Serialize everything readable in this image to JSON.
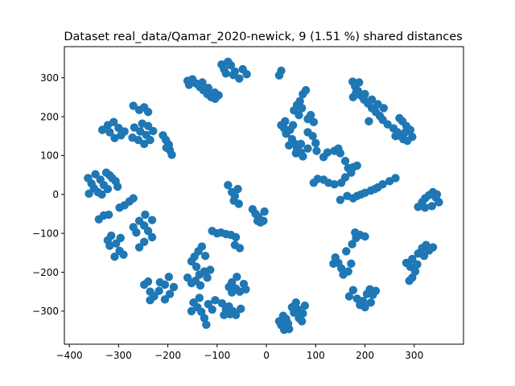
{
  "chart_data": {
    "type": "scatter",
    "title": "Dataset real_data/Qamar_2020-newick, 9 (1.51 %) shared distances",
    "xlabel": "",
    "ylabel": "",
    "xlim": [
      -410,
      400
    ],
    "ylim": [
      -385,
      380
    ],
    "xticks": [
      -400,
      -300,
      -200,
      -100,
      0,
      100,
      200,
      300
    ],
    "xtick_labels": [
      "−400",
      "−300",
      "−200",
      "−100",
      "0",
      "100",
      "200",
      "300"
    ],
    "yticks": [
      -300,
      -200,
      -100,
      0,
      100,
      200,
      300
    ],
    "ytick_labels": [
      "−300",
      "−200",
      "−100",
      "0",
      "100",
      "200",
      "300"
    ],
    "grid": false,
    "marker_color": "#1f77b4",
    "series": [
      {
        "values": [
          [
            -91,
            334
          ],
          [
            -86,
            322
          ],
          [
            -78,
            341
          ],
          [
            -72,
            332
          ],
          [
            -64,
            316
          ],
          [
            -55,
            298
          ],
          [
            -48,
            322
          ],
          [
            -40,
            309
          ],
          [
            -67,
            307
          ],
          [
            -82,
            311
          ],
          [
            -150,
            296
          ],
          [
            -142,
            285
          ],
          [
            -135,
            276
          ],
          [
            -128,
            268
          ],
          [
            -120,
            258
          ],
          [
            -112,
            250
          ],
          [
            -104,
            246
          ],
          [
            -118,
            274
          ],
          [
            -105,
            262
          ],
          [
            -97,
            255
          ],
          [
            -157,
            282
          ],
          [
            -160,
            292
          ],
          [
            -130,
            288
          ],
          [
            -270,
            228
          ],
          [
            -258,
            217
          ],
          [
            -248,
            224
          ],
          [
            -240,
            212
          ],
          [
            -322,
            178
          ],
          [
            -310,
            186
          ],
          [
            -300,
            171
          ],
          [
            -288,
            162
          ],
          [
            -295,
            152
          ],
          [
            -318,
            160
          ],
          [
            -333,
            166
          ],
          [
            -308,
            145
          ],
          [
            -268,
            172
          ],
          [
            -256,
            162
          ],
          [
            -244,
            153
          ],
          [
            -236,
            140
          ],
          [
            -248,
            130
          ],
          [
            -260,
            140
          ],
          [
            -272,
            146
          ],
          [
            -230,
            163
          ],
          [
            -240,
            176
          ],
          [
            -252,
            182
          ],
          [
            -210,
            152
          ],
          [
            -204,
            140
          ],
          [
            -198,
            128
          ],
          [
            -196,
            114
          ],
          [
            -192,
            102
          ],
          [
            -203,
            120
          ],
          [
            -362,
            42
          ],
          [
            -355,
            28
          ],
          [
            -350,
            16
          ],
          [
            -342,
            6
          ],
          [
            -360,
            2
          ],
          [
            -347,
            52
          ],
          [
            -337,
            38
          ],
          [
            -330,
            24
          ],
          [
            -322,
            14
          ],
          [
            -313,
            42
          ],
          [
            -306,
            34
          ],
          [
            -302,
            20
          ],
          [
            -318,
            49
          ],
          [
            -334,
            0
          ],
          [
            -325,
            56
          ],
          [
            -340,
            -64
          ],
          [
            -330,
            -54
          ],
          [
            -320,
            -52
          ],
          [
            -298,
            -34
          ],
          [
            -288,
            -28
          ],
          [
            -278,
            -18
          ],
          [
            -270,
            -10
          ],
          [
            -322,
            -118
          ],
          [
            -315,
            -106
          ],
          [
            -305,
            -126
          ],
          [
            -298,
            -145
          ],
          [
            -290,
            -155
          ],
          [
            -308,
            -160
          ],
          [
            -318,
            -132
          ],
          [
            -296,
            -112
          ],
          [
            -258,
            -68
          ],
          [
            -248,
            -80
          ],
          [
            -240,
            -94
          ],
          [
            -232,
            -110
          ],
          [
            -248,
            -122
          ],
          [
            -258,
            -136
          ],
          [
            -264,
            -98
          ],
          [
            -246,
            -52
          ],
          [
            -232,
            -66
          ],
          [
            -270,
            -84
          ],
          [
            -248,
            -232
          ],
          [
            -240,
            -224
          ],
          [
            -236,
            -250
          ],
          [
            -228,
            -262
          ],
          [
            -218,
            -248
          ],
          [
            -206,
            -270
          ],
          [
            -196,
            -256
          ],
          [
            -188,
            -238
          ],
          [
            -206,
            -232
          ],
          [
            -198,
            -212
          ],
          [
            -216,
            -226
          ],
          [
            -236,
            -272
          ],
          [
            -152,
            -172
          ],
          [
            -146,
            -160
          ],
          [
            -138,
            -146
          ],
          [
            -131,
            -134
          ],
          [
            -142,
            -186
          ],
          [
            -124,
            -158
          ],
          [
            -160,
            -214
          ],
          [
            -152,
            -228
          ],
          [
            -144,
            -222
          ],
          [
            -136,
            -206
          ],
          [
            -126,
            -198
          ],
          [
            -114,
            -194
          ],
          [
            -120,
            -214
          ],
          [
            -134,
            -234
          ],
          [
            -148,
            -278
          ],
          [
            -140,
            -290
          ],
          [
            -132,
            -302
          ],
          [
            -126,
            -318
          ],
          [
            -118,
            -282
          ],
          [
            -110,
            -296
          ],
          [
            -104,
            -272
          ],
          [
            -136,
            -266
          ],
          [
            -152,
            -300
          ],
          [
            -122,
            -335
          ],
          [
            -90,
            -280
          ],
          [
            -82,
            -296
          ],
          [
            -76,
            -288
          ],
          [
            -68,
            -300
          ],
          [
            -62,
            -310
          ],
          [
            -52,
            -294
          ],
          [
            -74,
            -308
          ],
          [
            -86,
            -310
          ],
          [
            -76,
            -238
          ],
          [
            -70,
            -226
          ],
          [
            -62,
            -242
          ],
          [
            -54,
            -250
          ],
          [
            -46,
            -230
          ],
          [
            -60,
            -212
          ],
          [
            -70,
            -252
          ],
          [
            -42,
            -244
          ],
          [
            -110,
            -94
          ],
          [
            -100,
            -100
          ],
          [
            -92,
            -98
          ],
          [
            -82,
            -102
          ],
          [
            -72,
            -104
          ],
          [
            -62,
            -110
          ],
          [
            -64,
            -130
          ],
          [
            -54,
            -138
          ],
          [
            -78,
            24
          ],
          [
            -70,
            6
          ],
          [
            -64,
            -4
          ],
          [
            -58,
            14
          ],
          [
            -56,
            -24
          ],
          [
            -66,
            -16
          ],
          [
            -28,
            -38
          ],
          [
            -22,
            -50
          ],
          [
            -16,
            -58
          ],
          [
            -12,
            -72
          ],
          [
            -6,
            -68
          ],
          [
            -4,
            -44
          ],
          [
            -18,
            -68
          ],
          [
            34,
            -312
          ],
          [
            40,
            -320
          ],
          [
            44,
            -332
          ],
          [
            30,
            -336
          ],
          [
            46,
            -346
          ],
          [
            36,
            -348
          ],
          [
            26,
            -326
          ],
          [
            52,
            -290
          ],
          [
            60,
            -278
          ],
          [
            64,
            -296
          ],
          [
            66,
            -318
          ],
          [
            74,
            -306
          ],
          [
            78,
            -286
          ],
          [
            56,
            -304
          ],
          [
            72,
            -326
          ],
          [
            26,
            306
          ],
          [
            30,
            318
          ],
          [
            52,
            142
          ],
          [
            58,
            130
          ],
          [
            62,
            118
          ],
          [
            70,
            108
          ],
          [
            74,
            98
          ],
          [
            60,
            106
          ],
          [
            46,
            126
          ],
          [
            40,
            156
          ],
          [
            36,
            170
          ],
          [
            30,
            178
          ],
          [
            38,
            188
          ],
          [
            48,
            166
          ],
          [
            54,
            178
          ],
          [
            56,
            216
          ],
          [
            62,
            230
          ],
          [
            68,
            240
          ],
          [
            74,
            258
          ],
          [
            80,
            268
          ],
          [
            72,
            222
          ],
          [
            66,
            204
          ],
          [
            84,
            194
          ],
          [
            90,
            204
          ],
          [
            96,
            186
          ],
          [
            84,
            160
          ],
          [
            94,
            150
          ],
          [
            100,
            132
          ],
          [
            84,
            118
          ],
          [
            102,
            112
          ],
          [
            116,
            96
          ],
          [
            124,
            108
          ],
          [
            70,
            130
          ],
          [
            138,
            112
          ],
          [
            146,
            118
          ],
          [
            150,
            106
          ],
          [
            160,
            86
          ],
          [
            166,
            68
          ],
          [
            172,
            56
          ],
          [
            160,
            44
          ],
          [
            152,
            30
          ],
          [
            138,
            26
          ],
          [
            126,
            30
          ],
          [
            116,
            38
          ],
          [
            104,
            40
          ],
          [
            96,
            30
          ],
          [
            176,
            70
          ],
          [
            184,
            74
          ],
          [
            150,
            -14
          ],
          [
            164,
            -4
          ],
          [
            176,
            -10
          ],
          [
            184,
            -4
          ],
          [
            200,
            4
          ],
          [
            212,
            10
          ],
          [
            226,
            18
          ],
          [
            236,
            26
          ],
          [
            250,
            34
          ],
          [
            262,
            42
          ],
          [
            192,
            0
          ],
          [
            220,
            14
          ],
          [
            175,
            290
          ],
          [
            180,
            278
          ],
          [
            186,
            266
          ],
          [
            192,
            254
          ],
          [
            198,
            244
          ],
          [
            206,
            234
          ],
          [
            214,
            222
          ],
          [
            222,
            212
          ],
          [
            230,
            202
          ],
          [
            236,
            192
          ],
          [
            246,
            180
          ],
          [
            182,
            262
          ],
          [
            200,
            258
          ],
          [
            214,
            244
          ],
          [
            188,
            288
          ],
          [
            176,
            250
          ],
          [
            226,
            232
          ],
          [
            238,
            222
          ],
          [
            208,
            188
          ],
          [
            258,
            170
          ],
          [
            266,
            160
          ],
          [
            272,
            150
          ],
          [
            278,
            142
          ],
          [
            286,
            138
          ],
          [
            296,
            148
          ],
          [
            292,
            166
          ],
          [
            284,
            176
          ],
          [
            276,
            188
          ],
          [
            270,
            196
          ],
          [
            262,
            150
          ],
          [
            282,
            160
          ],
          [
            308,
            -32
          ],
          [
            316,
            -20
          ],
          [
            322,
            -10
          ],
          [
            330,
            -2
          ],
          [
            338,
            6
          ],
          [
            344,
            -8
          ],
          [
            350,
            -20
          ],
          [
            336,
            -30
          ],
          [
            322,
            -34
          ],
          [
            346,
            0
          ],
          [
            136,
            -178
          ],
          [
            140,
            -162
          ],
          [
            146,
            -176
          ],
          [
            152,
            -190
          ],
          [
            156,
            -206
          ],
          [
            166,
            -198
          ],
          [
            172,
            -178
          ],
          [
            162,
            -146
          ],
          [
            174,
            -128
          ],
          [
            182,
            -112
          ],
          [
            190,
            -104
          ],
          [
            200,
            -108
          ],
          [
            180,
            -98
          ],
          [
            168,
            -262
          ],
          [
            176,
            -246
          ],
          [
            184,
            -268
          ],
          [
            190,
            -284
          ],
          [
            196,
            -274
          ],
          [
            204,
            -256
          ],
          [
            210,
            -244
          ],
          [
            216,
            -258
          ],
          [
            222,
            -248
          ],
          [
            212,
            -278
          ],
          [
            200,
            -290
          ],
          [
            290,
            -222
          ],
          [
            296,
            -214
          ],
          [
            302,
            -198
          ],
          [
            292,
            -186
          ],
          [
            284,
            -176
          ],
          [
            296,
            -166
          ],
          [
            308,
            -152
          ],
          [
            316,
            -138
          ],
          [
            324,
            -130
          ],
          [
            330,
            -144
          ],
          [
            338,
            -136
          ],
          [
            320,
            -158
          ],
          [
            306,
            -180
          ]
        ]
      }
    ]
  }
}
